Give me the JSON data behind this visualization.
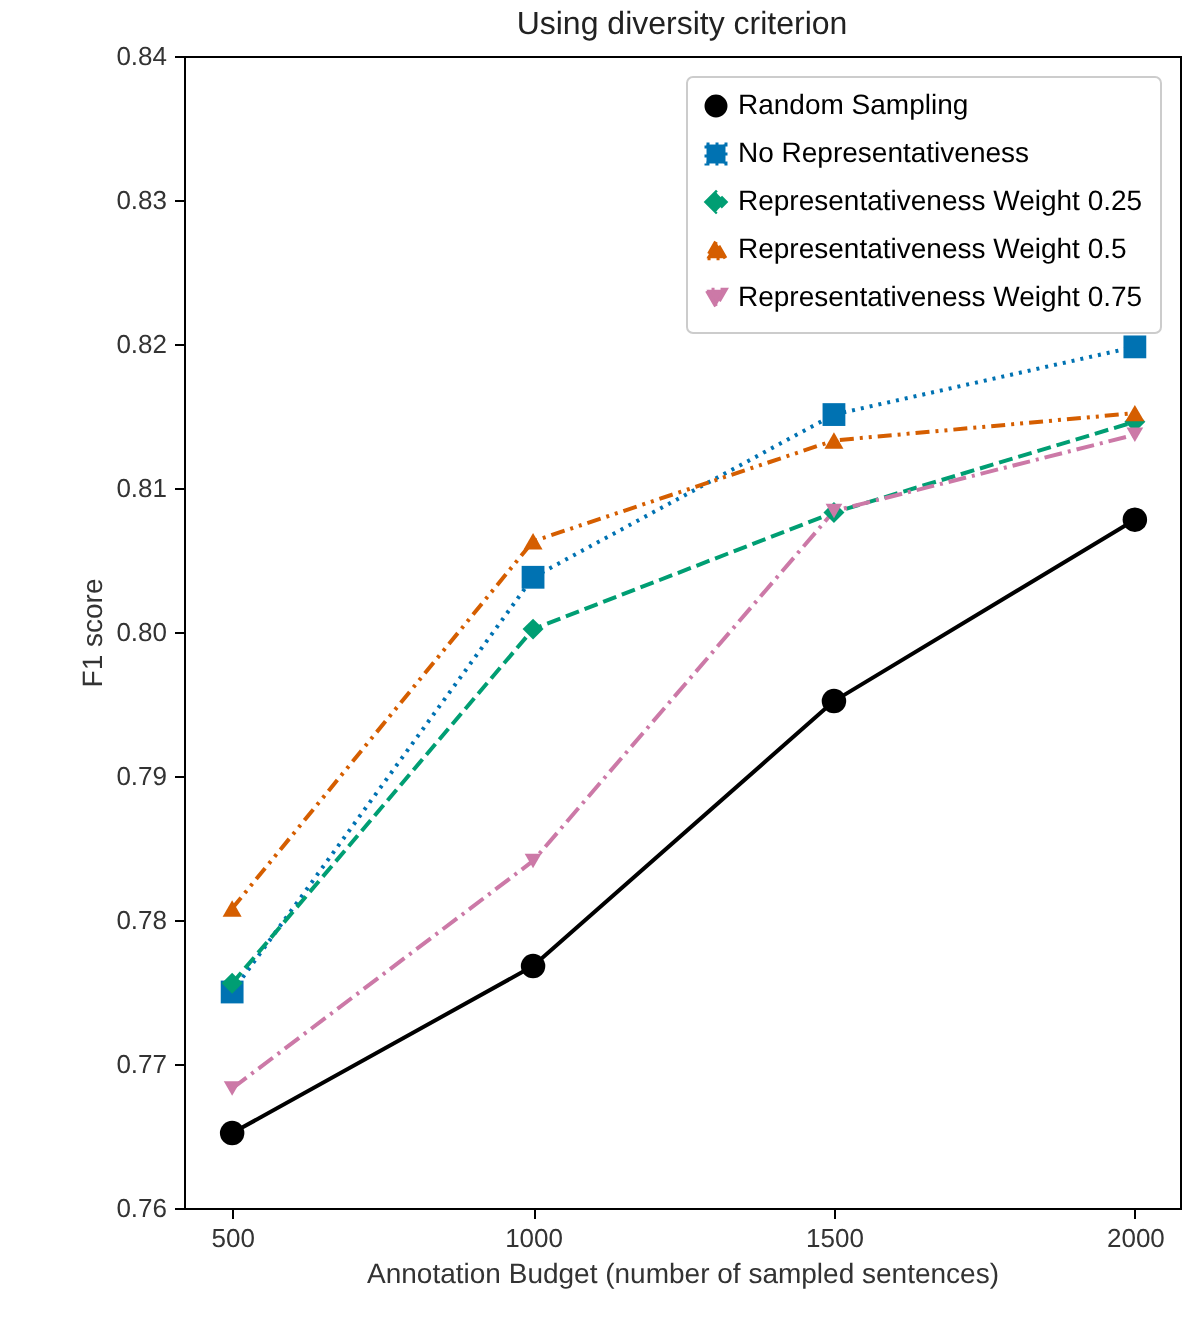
{
  "chart_data": {
    "type": "line",
    "title": "Using diversity criterion",
    "xlabel": "Annotation Budget (number of sampled sentences)",
    "ylabel": "F1 score",
    "x": [
      500,
      1000,
      1500,
      2000
    ],
    "series": [
      {
        "name": "Random Sampling",
        "color": "#000000",
        "marker": "circle",
        "line_style": "solid",
        "values": [
          0.7652,
          0.7768,
          0.7952,
          0.8078
        ]
      },
      {
        "name": "No Representativeness",
        "color": "#0072b2",
        "marker": "square",
        "line_style": "dotted",
        "values": [
          0.775,
          0.8038,
          0.8151,
          0.8198
        ]
      },
      {
        "name": "Representativeness Weight 0.25",
        "color": "#009e73",
        "marker": "diamond",
        "line_style": "dashed",
        "values": [
          0.7756,
          0.8002,
          0.8083,
          0.8146
        ]
      },
      {
        "name": "Representativeness Weight 0.5",
        "color": "#d55e00",
        "marker": "triangle",
        "line_style": "dashdotdot",
        "values": [
          0.7808,
          0.8063,
          0.8133,
          0.8152
        ]
      },
      {
        "name": "Representativeness Weight 0.75",
        "color": "#cc79a7",
        "marker": "triangle-down",
        "line_style": "dashdot",
        "values": [
          0.7683,
          0.7841,
          0.8084,
          0.8137
        ]
      }
    ],
    "xlim": [
      420,
      2075
    ],
    "xticks": [
      500,
      1000,
      1500,
      2000
    ],
    "ylim": [
      0.76,
      0.84
    ],
    "yticks": [
      0.76,
      0.77,
      0.78,
      0.79,
      {
        "value": 0.8,
        "label": "0.80"
      },
      0.81,
      0.82,
      0.83,
      0.84
    ],
    "grid": false,
    "legend": "top right"
  }
}
